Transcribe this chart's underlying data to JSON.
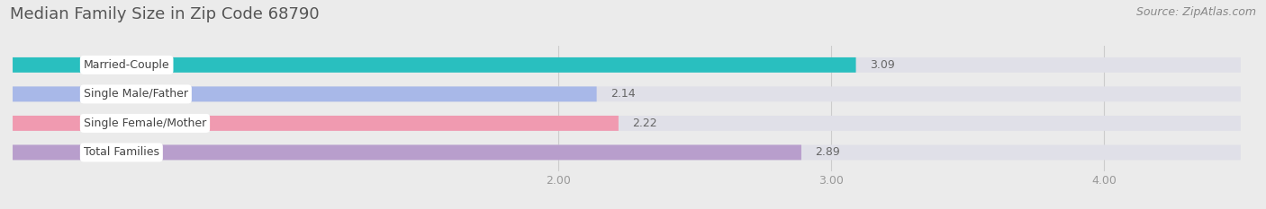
{
  "title": "Median Family Size in Zip Code 68790",
  "source": "Source: ZipAtlas.com",
  "categories": [
    "Married-Couple",
    "Single Male/Father",
    "Single Female/Mother",
    "Total Families"
  ],
  "values": [
    3.09,
    2.14,
    2.22,
    2.89
  ],
  "bar_colors": [
    "#29bfbf",
    "#a8b8e8",
    "#f09ab0",
    "#b89ecc"
  ],
  "xmin": 0.0,
  "xmax": 4.5,
  "xlim_display": [
    2.0,
    4.0
  ],
  "xticks": [
    2.0,
    3.0,
    4.0
  ],
  "xtick_labels": [
    "2.00",
    "3.00",
    "4.00"
  ],
  "bar_height": 0.52,
  "bg_color": "#ebebeb",
  "track_color": "#e0e0e8",
  "title_fontsize": 13,
  "source_fontsize": 9,
  "label_fontsize": 9,
  "value_fontsize": 9,
  "tick_fontsize": 9
}
